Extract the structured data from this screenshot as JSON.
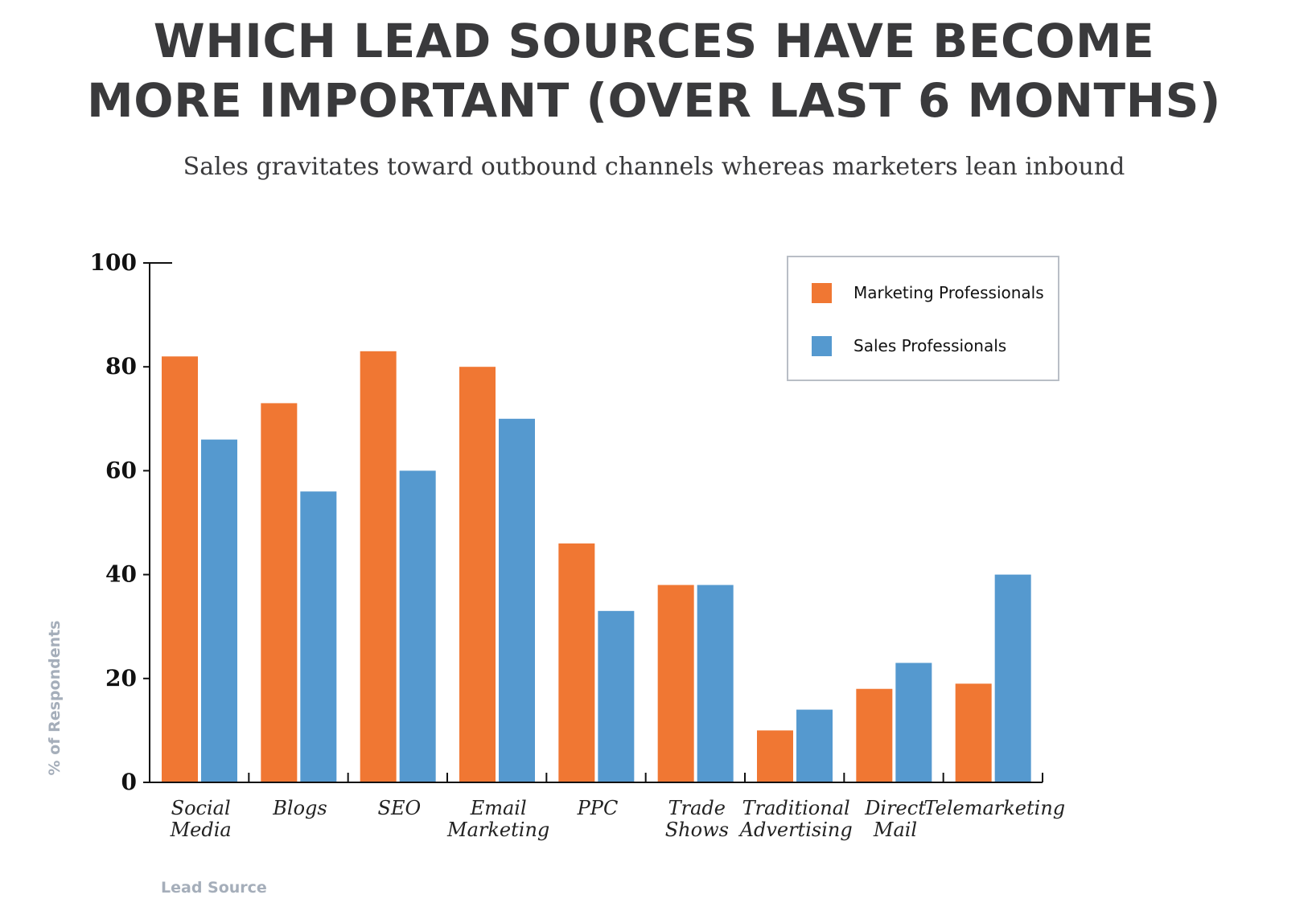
{
  "chart_data": {
    "type": "bar",
    "title_lines": [
      "WHICH LEAD SOURCES HAVE BECOME",
      "MORE IMPORTANT (OVER LAST 6 MONTHS)"
    ],
    "subtitle": "Sales gravitates toward outbound channels whereas marketers lean inbound",
    "xlabel": "Lead Source",
    "ylabel": "% of Respondents",
    "ylim": [
      0,
      100
    ],
    "yticks": [
      0,
      20,
      40,
      60,
      80,
      100
    ],
    "grid": false,
    "legend_position": "top-right",
    "categories": [
      [
        "Social",
        "Media"
      ],
      [
        "Blogs"
      ],
      [
        "SEO"
      ],
      [
        "Email",
        "Marketing"
      ],
      [
        "PPC"
      ],
      [
        "Trade",
        "Shows"
      ],
      [
        "Traditional",
        "Advertising"
      ],
      [
        "Direct",
        "Mail"
      ],
      [
        "Telemarketing"
      ]
    ],
    "series": [
      {
        "name": "Marketing Professionals",
        "color": "#f07733",
        "values": [
          82,
          73,
          83,
          80,
          46,
          38,
          10,
          18,
          19
        ]
      },
      {
        "name": "Sales Professionals",
        "color": "#5599cf",
        "values": [
          66,
          56,
          60,
          70,
          33,
          38,
          14,
          23,
          40
        ]
      }
    ]
  }
}
